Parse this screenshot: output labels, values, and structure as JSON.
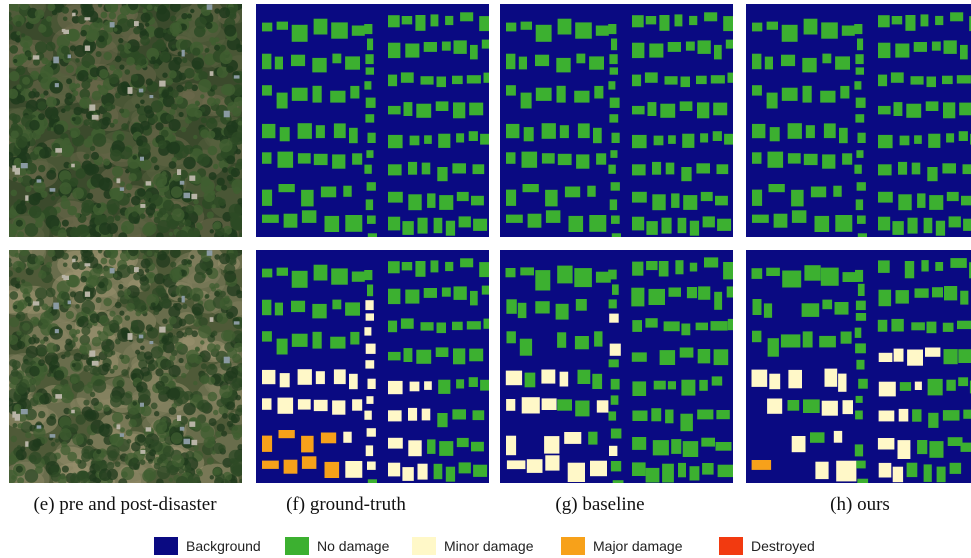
{
  "captions": {
    "e": "(e) pre and post-disaster",
    "f": "(f) ground-truth",
    "g": "(g) baseline",
    "h": "(h) ours"
  },
  "legend": [
    {
      "label": "Background",
      "color": "#0a0a82"
    },
    {
      "label": "No damage",
      "color": "#3cb030"
    },
    {
      "label": "Minor damage",
      "color": "#fff8c8"
    },
    {
      "label": "Major damage",
      "color": "#f7a11a"
    },
    {
      "label": "Destroyed",
      "color": "#f23a10"
    }
  ],
  "colors": {
    "background": "#0a0a82",
    "no_damage": "#3cb030",
    "minor_damage": "#fff8c8",
    "major_damage": "#f7a11a",
    "destroyed": "#f23a10"
  },
  "panels": [
    {
      "row": "pre-disaster",
      "column": "e",
      "content": "aerial-image-pre"
    },
    {
      "row": "pre-disaster",
      "column": "f",
      "content": "segmentation-ground-truth"
    },
    {
      "row": "pre-disaster",
      "column": "g",
      "content": "segmentation-baseline"
    },
    {
      "row": "pre-disaster",
      "column": "h",
      "content": "segmentation-ours"
    },
    {
      "row": "post-disaster",
      "column": "e",
      "content": "aerial-image-post"
    },
    {
      "row": "post-disaster",
      "column": "f",
      "content": "damage-ground-truth"
    },
    {
      "row": "post-disaster",
      "column": "g",
      "content": "damage-baseline"
    },
    {
      "row": "post-disaster",
      "column": "h",
      "content": "damage-ours"
    }
  ]
}
